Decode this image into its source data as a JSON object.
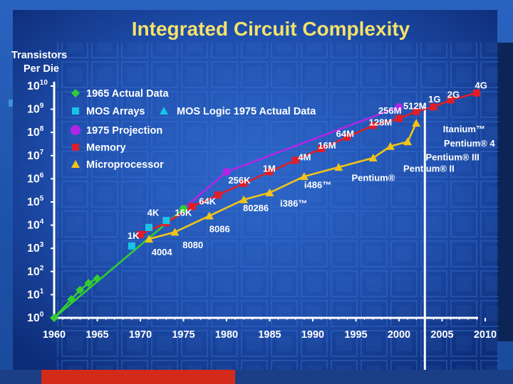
{
  "chart_data": {
    "type": "line",
    "title": "Integrated Circuit Complexity",
    "ylabel_line1": "Transistors",
    "ylabel_line2": "Per Die",
    "y_scale": "log10",
    "ylim_exponent": [
      0,
      10
    ],
    "xlim": [
      1960,
      2010
    ],
    "x_ticks": [
      "1960",
      "1965",
      "1970",
      "1975",
      "1980",
      "1985",
      "1990",
      "1995",
      "2000",
      "2005",
      "2010"
    ],
    "y_ticks": [
      {
        "base": "10",
        "exp": "0",
        "value": 0
      },
      {
        "base": "10",
        "exp": "1",
        "value": 1
      },
      {
        "base": "10",
        "exp": "2",
        "value": 2
      },
      {
        "base": "10",
        "exp": "3",
        "value": 3
      },
      {
        "base": "10",
        "exp": "4",
        "value": 4
      },
      {
        "base": "10",
        "exp": "5",
        "value": 5
      },
      {
        "base": "10",
        "exp": "6",
        "value": 6
      },
      {
        "base": "10",
        "exp": "7",
        "value": 7
      },
      {
        "base": "10",
        "exp": "8",
        "value": 8
      },
      {
        "base": "10",
        "exp": "9",
        "value": 9
      },
      {
        "base": "10",
        "exp": "10",
        "value": 10
      }
    ],
    "reference_line_year": 2003,
    "legend": [
      {
        "name": "1965 Actual Data",
        "color": "#33cc33",
        "marker": "diamond"
      },
      {
        "name": "MOS Arrays",
        "color": "#19c3e8",
        "marker": "square"
      },
      {
        "name": "MOS Logic 1975 Actual Data",
        "color": "#19c3e8",
        "marker": "triangle"
      },
      {
        "name": "1975 Projection",
        "color": "#b026e8",
        "marker": "circle"
      },
      {
        "name": "Memory",
        "color": "#e01e28",
        "marker": "square"
      },
      {
        "name": "Microprocessor",
        "color": "#f2c418",
        "marker": "triangle"
      }
    ],
    "series": [
      {
        "key": "actual1965",
        "name": "1965 Actual Data",
        "color": "#33cc33",
        "marker": "diamond",
        "x": [
          1960,
          1962,
          1963,
          1964,
          1965
        ],
        "y": [
          0,
          0.8,
          1.2,
          1.5,
          1.7
        ]
      },
      {
        "key": "projection1975",
        "name": "1975 Projection",
        "color": "#b026e8",
        "marker": "circle",
        "x": [
          1975,
          1980,
          2000
        ],
        "y": [
          4.7,
          6.3,
          9.1
        ]
      },
      {
        "key": "projectionLine",
        "name": "Projection Trend",
        "color": "#33cc33",
        "marker": "none",
        "x": [
          1960,
          1975
        ],
        "y": [
          0,
          4.7
        ]
      },
      {
        "key": "mosArrays",
        "name": "MOS Arrays",
        "color": "#19c3e8",
        "marker": "square",
        "x": [
          1969,
          1971,
          1973
        ],
        "y": [
          3.1,
          3.9,
          4.2
        ]
      },
      {
        "key": "memory",
        "name": "Memory",
        "color": "#e01e28",
        "marker": "square",
        "x": [
          1970,
          1973,
          1976,
          1979,
          1982,
          1985,
          1988,
          1991,
          1994,
          1997,
          2000,
          2002,
          2004,
          2006,
          2009
        ],
        "y": [
          3.6,
          4.1,
          4.8,
          5.3,
          5.8,
          6.3,
          6.8,
          7.3,
          7.8,
          8.3,
          8.6,
          8.9,
          9.1,
          9.4,
          9.7
        ]
      },
      {
        "key": "microprocessor",
        "name": "Microprocessor",
        "color": "#f2c418",
        "marker": "triangle",
        "x": [
          1971,
          1974,
          1978,
          1982,
          1985,
          1989,
          1993,
          1997,
          1999,
          2001,
          2002
        ],
        "y": [
          3.4,
          3.7,
          4.4,
          5.1,
          5.4,
          6.1,
          6.5,
          6.9,
          7.4,
          7.6,
          8.4
        ]
      }
    ],
    "annotations": [
      {
        "text": "1K",
        "x": 1968.5,
        "y": 3.4
      },
      {
        "text": "4K",
        "x": 1970.8,
        "y": 4.4
      },
      {
        "text": "16K",
        "x": 1974.0,
        "y": 4.4
      },
      {
        "text": "64K",
        "x": 1976.8,
        "y": 4.9
      },
      {
        "text": "256K",
        "x": 1980.2,
        "y": 5.8
      },
      {
        "text": "1M",
        "x": 1984.2,
        "y": 6.3
      },
      {
        "text": "4M",
        "x": 1988.3,
        "y": 6.8
      },
      {
        "text": "16M",
        "x": 1990.6,
        "y": 7.3
      },
      {
        "text": "64M",
        "x": 1992.7,
        "y": 7.8
      },
      {
        "text": "128M",
        "x": 1996.5,
        "y": 8.3
      },
      {
        "text": "256M",
        "x": 1997.6,
        "y": 8.8
      },
      {
        "text": "512M",
        "x": 2000.5,
        "y": 9.0
      },
      {
        "text": "1G",
        "x": 2003.4,
        "y": 9.3
      },
      {
        "text": "2G",
        "x": 2005.6,
        "y": 9.5
      },
      {
        "text": "4G",
        "x": 2008.8,
        "y": 9.9
      },
      {
        "text": "4004",
        "x": 1971.3,
        "y": 2.7
      },
      {
        "text": "8080",
        "x": 1974.9,
        "y": 3.0
      },
      {
        "text": "8086",
        "x": 1978.0,
        "y": 3.7
      },
      {
        "text": "80286",
        "x": 1981.9,
        "y": 4.6
      },
      {
        "text": "i386™",
        "x": 1986.2,
        "y": 4.8
      },
      {
        "text": "i486™",
        "x": 1989.0,
        "y": 5.6
      },
      {
        "text": "Pentium®",
        "x": 1994.5,
        "y": 5.9
      },
      {
        "text": "Pentium® II",
        "x": 2000.5,
        "y": 6.3
      },
      {
        "text": "Pentium® III",
        "x": 2003.1,
        "y": 6.8
      },
      {
        "text": "Pentium® 4",
        "x": 2005.2,
        "y": 7.4
      },
      {
        "text": "Itanium™",
        "x": 2005.1,
        "y": 8.0
      }
    ]
  }
}
